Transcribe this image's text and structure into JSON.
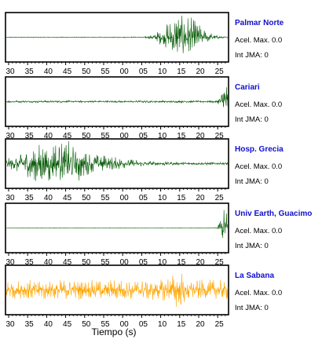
{
  "chart_data": {
    "type": "line",
    "xlabel": "Tiempo (s)",
    "grid": false,
    "panels": [
      {
        "station": "Palmar Norte",
        "accel_label": "Acel. Max. 0.0",
        "jma_label": "Int JMA: 0",
        "color": "#0b5e0b",
        "x_ticks": [
          "30",
          "35",
          "40",
          "45",
          "50",
          "55",
          "00",
          "05",
          "10",
          "15",
          "20",
          "25"
        ],
        "show_ticks": true,
        "waveform": {
          "base_amp": 0.02,
          "bursts": [
            {
              "t": 0.78,
              "amp": 0.9,
              "w": 0.06
            },
            {
              "t": 0.86,
              "amp": 0.3,
              "w": 0.05
            }
          ]
        }
      },
      {
        "station": "Cariari",
        "accel_label": "Acel. Max. 0.0",
        "jma_label": "Int JMA: 0",
        "color": "#0b5e0b",
        "x_ticks": [
          "30",
          "35",
          "40",
          "45",
          "50",
          "55",
          "00",
          "05",
          "10",
          "15",
          "20",
          "25"
        ],
        "show_ticks": true,
        "waveform": {
          "base_amp": 0.05,
          "bursts": [
            {
              "t": 0.985,
              "amp": 0.9,
              "w": 0.015
            }
          ]
        }
      },
      {
        "station": "Hosp. Grecia",
        "accel_label": "Acel. Max. 0.0",
        "jma_label": "Int JMA: 0",
        "color": "#0b5e0b",
        "x_ticks": [
          "30",
          "35",
          "40",
          "45",
          "50",
          "55",
          "00",
          "05",
          "10",
          "15",
          "20",
          "25"
        ],
        "show_ticks": true,
        "waveform": {
          "base_amp": 0.07,
          "bursts": [
            {
              "t": 0.2,
              "amp": 0.95,
              "w": 0.1
            },
            {
              "t": 0.35,
              "amp": 0.35,
              "w": 0.15
            }
          ]
        }
      },
      {
        "station": "Univ Earth, Guacimo",
        "accel_label": "Acel. Max. 0.0",
        "jma_label": "Int JMA: 0",
        "color": "#0b5e0b",
        "x_ticks": [
          "30",
          "35",
          "40",
          "45",
          "50",
          "55",
          "00",
          "05",
          "10",
          "15",
          "20",
          "25"
        ],
        "show_ticks": true,
        "waveform": {
          "base_amp": 0.01,
          "bursts": [
            {
              "t": 0.985,
              "amp": 0.9,
              "w": 0.015
            }
          ]
        }
      },
      {
        "station": "La Sabana",
        "accel_label": "Acel. Max. 0.0",
        "jma_label": "Int JMA: 0",
        "color": "#ffa500",
        "x_ticks": [
          "30",
          "35",
          "40",
          "45",
          "50",
          "55",
          "00",
          "05",
          "10",
          "15",
          "20",
          "25"
        ],
        "show_ticks": true,
        "waveform": {
          "base_amp": 0.45,
          "bursts": [
            {
              "t": 0.78,
              "amp": 0.4,
              "w": 0.03
            }
          ]
        }
      }
    ]
  }
}
